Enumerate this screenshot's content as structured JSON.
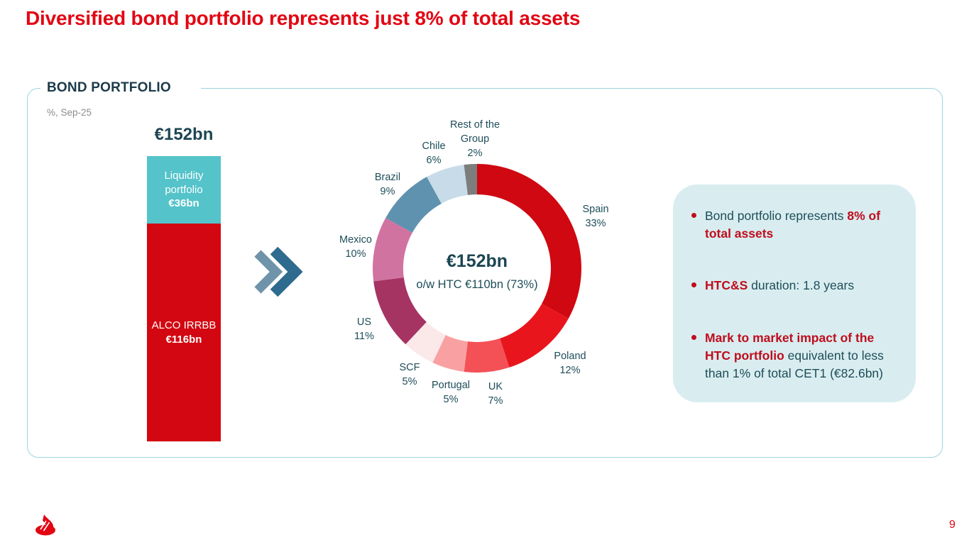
{
  "slide": {
    "title": "Diversified bond portfolio represents just 8% of total assets",
    "page_number": "9",
    "logo_icon": "santander-flame-logo",
    "arrow_icon": "double-chevron-right-icon"
  },
  "panel": {
    "heading": "BOND PORTFOLIO",
    "unit_note": "%, Sep-25"
  },
  "colors": {
    "brand_red": "#e20613",
    "bullet_red": "#c00d1d",
    "dark_teal": "#1e4d59",
    "heading_teal": "#1b3a4a",
    "panel_border": "#9ad6dd",
    "callout_bg": "#d9edf0",
    "note_gray": "#8c8c8c"
  },
  "chart_data": [
    {
      "type": "bar",
      "stacked": true,
      "title": "€152bn",
      "total": 152,
      "unit_note": "%, Sep-25",
      "segments": [
        {
          "id": "liquidity",
          "lines": [
            "Liquidity",
            "portfolio"
          ],
          "value": 36,
          "value_label": "€36bn",
          "color": "#54c3ca"
        },
        {
          "id": "alco",
          "lines": [
            "ALCO IRRBB"
          ],
          "value": 116,
          "value_label": "€116bn",
          "color": "#d30711"
        }
      ]
    },
    {
      "type": "pie",
      "donut": true,
      "start": "top",
      "direction": "clockwise",
      "center_title": "€152bn",
      "center_subtitle": "o/w HTC €110bn (73%)",
      "categories": [
        "Spain",
        "Poland",
        "UK",
        "Portugal",
        "SCF",
        "US",
        "Mexico",
        "Brazil",
        "Chile",
        "Rest of the Group"
      ],
      "values": [
        33,
        12,
        7,
        5,
        5,
        11,
        10,
        9,
        6,
        2
      ],
      "segments": [
        {
          "id": "spain",
          "lines": [
            "Spain"
          ],
          "pct": 33,
          "color": "#cf0811"
        },
        {
          "id": "poland",
          "lines": [
            "Poland"
          ],
          "pct": 12,
          "color": "#e9151c"
        },
        {
          "id": "uk",
          "lines": [
            "UK"
          ],
          "pct": 7,
          "color": "#f35156"
        },
        {
          "id": "portugal",
          "lines": [
            "Portugal"
          ],
          "pct": 5,
          "color": "#f9a1a2"
        },
        {
          "id": "scf",
          "lines": [
            "SCF"
          ],
          "pct": 5,
          "color": "#fbe8e9"
        },
        {
          "id": "us",
          "lines": [
            "US"
          ],
          "pct": 11,
          "color": "#a63463"
        },
        {
          "id": "mexico",
          "lines": [
            "Mexico"
          ],
          "pct": 10,
          "color": "#d173a1"
        },
        {
          "id": "brazil",
          "lines": [
            "Brazil"
          ],
          "pct": 9,
          "color": "#5f92af"
        },
        {
          "id": "chile",
          "lines": [
            "Chile"
          ],
          "pct": 6,
          "color": "#c7dce8"
        },
        {
          "id": "rest_of_group",
          "lines": [
            "Rest of the",
            "Group"
          ],
          "pct": 2,
          "color": "#7d7d7d"
        }
      ]
    }
  ],
  "callout": {
    "bullets": [
      {
        "parts": [
          {
            "t": "Bond portfolio represents ",
            "b": false
          },
          {
            "t": "8% of total assets",
            "b": true
          }
        ]
      },
      {
        "parts": [
          {
            "t": "HTC&S",
            "b": true
          },
          {
            "t": " duration: 1.8 years",
            "b": false
          }
        ]
      },
      {
        "parts": [
          {
            "t": "Mark to market impact of the HTC portfolio",
            "b": true
          },
          {
            "t": " equivalent to less than 1% of total CET1 (€82.6bn)",
            "b": false
          }
        ]
      }
    ]
  }
}
